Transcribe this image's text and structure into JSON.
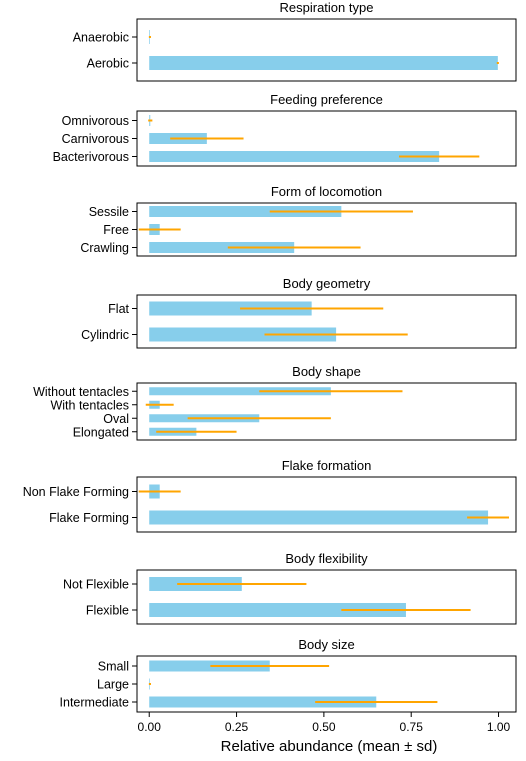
{
  "chart_data": {
    "type": "bar",
    "orientation": "horizontal",
    "error_bars": true,
    "xlabel": "Relative abundance (mean ± sd)",
    "xlim": [
      -0.035,
      1.05
    ],
    "xticks": [
      0.0,
      0.25,
      0.5,
      0.75,
      1.0
    ],
    "xtick_labels": [
      "0.00",
      "0.25",
      "0.50",
      "0.75",
      "1.00"
    ],
    "grid": false,
    "bar_color": "#87ceeb",
    "error_color": "#ffa500",
    "panels": [
      {
        "title": "Respiration type",
        "categories": [
          "Anaerobic",
          "Aerobic"
        ],
        "values": [
          0.002,
          0.998
        ],
        "sd": [
          0.003,
          0.003
        ]
      },
      {
        "title": "Feeding preference",
        "categories": [
          "Omnivorous",
          "Carnivorous",
          "Bacterivorous"
        ],
        "values": [
          0.003,
          0.165,
          0.83
        ],
        "sd": [
          0.006,
          0.105,
          0.115
        ]
      },
      {
        "title": "Form of locomotion",
        "categories": [
          "Sessile",
          "Free",
          "Crawling"
        ],
        "values": [
          0.55,
          0.03,
          0.415
        ],
        "sd": [
          0.205,
          0.06,
          0.19
        ]
      },
      {
        "title": "Body geometry",
        "categories": [
          "Flat",
          "Cylindric"
        ],
        "values": [
          0.465,
          0.535
        ],
        "sd": [
          0.205,
          0.205
        ]
      },
      {
        "title": "Body shape",
        "categories": [
          "Without tentacles",
          "With tentacles",
          "Oval",
          "Elongated"
        ],
        "values": [
          0.52,
          0.03,
          0.315,
          0.135
        ],
        "sd": [
          0.205,
          0.04,
          0.205,
          0.115
        ]
      },
      {
        "title": "Flake formation",
        "categories": [
          "Non Flake Forming",
          "Flake Forming"
        ],
        "values": [
          0.03,
          0.97
        ],
        "sd": [
          0.06,
          0.06
        ]
      },
      {
        "title": "Body flexibility",
        "categories": [
          "Not Flexible",
          "Flexible"
        ],
        "values": [
          0.265,
          0.735
        ],
        "sd": [
          0.185,
          0.185
        ]
      },
      {
        "title": "Body size",
        "categories": [
          "Small",
          "Large",
          "Intermediate"
        ],
        "values": [
          0.345,
          0.002,
          0.65
        ],
        "sd": [
          0.17,
          0.003,
          0.175
        ]
      }
    ]
  }
}
